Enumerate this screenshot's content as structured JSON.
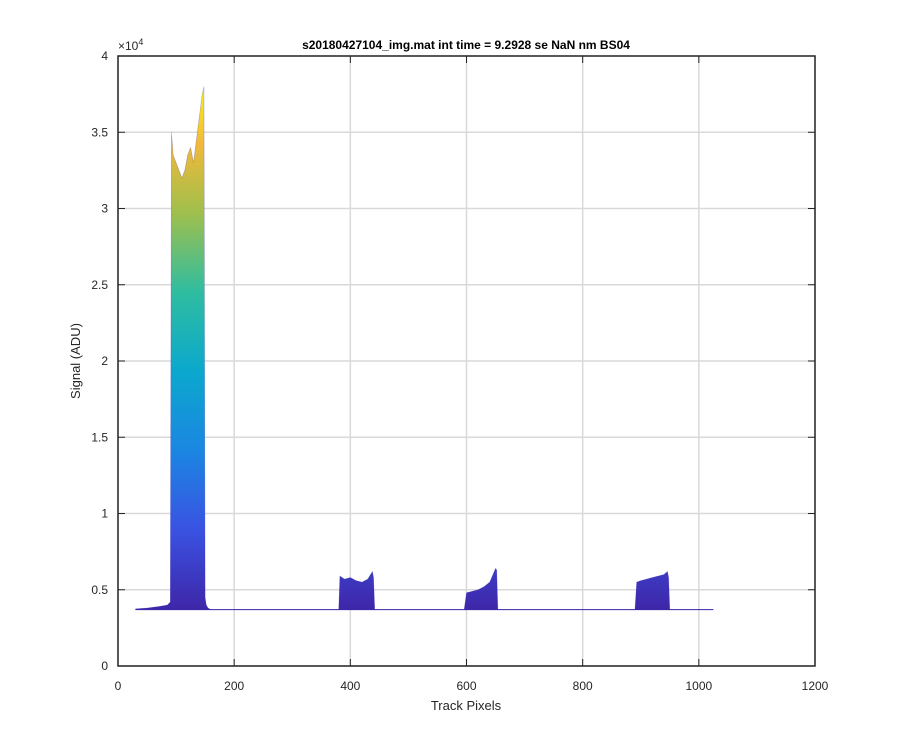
{
  "chart_data": {
    "type": "area",
    "title": "s20180427104_img.mat int time = 9.2928 se  NaN nm BS04",
    "xlabel": "Track Pixels",
    "ylabel": "Signal (ADU)",
    "xlim": [
      0,
      1200
    ],
    "ylim": [
      0,
      40000
    ],
    "xticks": [
      0,
      200,
      400,
      600,
      800,
      1000,
      1200
    ],
    "yticks": [
      0,
      0.5,
      1,
      1.5,
      2,
      2.5,
      3,
      3.5,
      4
    ],
    "ytick_labels": [
      "0",
      "0.5",
      "1",
      "1.5",
      "2",
      "2.5",
      "3",
      "3.5",
      "4"
    ],
    "y_exponent_label": "×10",
    "y_exponent_power": "4",
    "grid": true,
    "colormap": "parula",
    "baseline": 3700,
    "series": [
      {
        "x": [
          30,
          50,
          70,
          85,
          90,
          92,
          95,
          100,
          105,
          110,
          115,
          120,
          125,
          130,
          135,
          140,
          145,
          148,
          150,
          152,
          155,
          160,
          170,
          200,
          300,
          370,
          380,
          382,
          390,
          400,
          410,
          420,
          430,
          438,
          440,
          442,
          450,
          500,
          580,
          596,
          600,
          610,
          620,
          630,
          640,
          650,
          652,
          654,
          660,
          700,
          800,
          880,
          890,
          893,
          900,
          910,
          920,
          930,
          940,
          946,
          948,
          950,
          1000,
          1025
        ],
        "y": [
          3750,
          3800,
          3900,
          4000,
          4200,
          35000,
          33500,
          33000,
          32500,
          32000,
          32500,
          33500,
          34000,
          33000,
          34500,
          36000,
          37500,
          38000,
          4500,
          4000,
          3800,
          3700,
          3700,
          3700,
          3700,
          3700,
          3700,
          5900,
          5700,
          5800,
          5600,
          5500,
          5700,
          6200,
          5800,
          3700,
          3700,
          3700,
          3700,
          3700,
          4800,
          4900,
          5000,
          5200,
          5500,
          6400,
          6300,
          3700,
          3700,
          3700,
          3700,
          3700,
          3700,
          5500,
          5600,
          5700,
          5800,
          5900,
          6000,
          6200,
          5800,
          3700,
          3700,
          3700
        ]
      }
    ]
  }
}
